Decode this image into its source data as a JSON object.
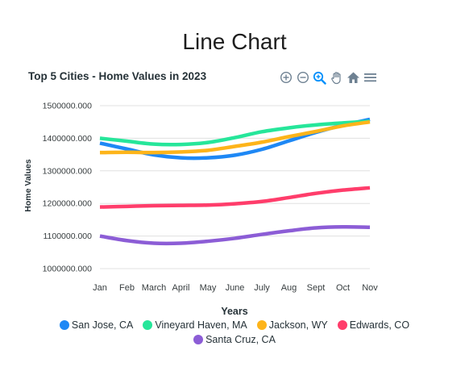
{
  "page": {
    "title": "Line Chart"
  },
  "toolbar": {
    "icons": [
      "zoom-in-icon",
      "zoom-out-icon",
      "selection-zoom-icon",
      "pan-hand-icon",
      "reset-home-icon",
      "menu-icon"
    ]
  },
  "chart_data": {
    "type": "line",
    "title": "Top 5 Cities - Home Values in 2023",
    "xlabel": "Years",
    "ylabel": "Home Values",
    "categories": [
      "Jan",
      "Feb",
      "March",
      "April",
      "May",
      "June",
      "July",
      "Aug",
      "Sept",
      "Oct",
      "Nov"
    ],
    "ylim": [
      1000000,
      1500000
    ],
    "yticks": [
      "1500000.000",
      "1400000.000",
      "1300000.000",
      "1200000.000",
      "1100000.000",
      "1000000.000"
    ],
    "ytick_values": [
      1500000,
      1400000,
      1300000,
      1200000,
      1100000,
      1000000
    ],
    "grid": true,
    "legend_position": "bottom",
    "series": [
      {
        "name": "San Jose, CA",
        "color": "#1e88f5",
        "values": [
          1385000,
          1367000,
          1349000,
          1340000,
          1340000,
          1348000,
          1366000,
          1392000,
          1418000,
          1440000,
          1458000
        ]
      },
      {
        "name": "Vineyard Haven, MA",
        "color": "#26e69a",
        "values": [
          1400000,
          1391000,
          1382000,
          1381000,
          1387000,
          1402000,
          1420000,
          1432000,
          1441000,
          1447000,
          1452000
        ]
      },
      {
        "name": "Jackson, WY",
        "color": "#fdb41a",
        "values": [
          1356000,
          1357000,
          1356000,
          1358000,
          1363000,
          1375000,
          1388000,
          1405000,
          1421000,
          1438000,
          1450000
        ]
      },
      {
        "name": "Edwards, CO",
        "color": "#ff3d6b",
        "values": [
          1189000,
          1191000,
          1193000,
          1194000,
          1195000,
          1199000,
          1206000,
          1218000,
          1231000,
          1241000,
          1248000
        ]
      },
      {
        "name": "Santa Cruz, CA",
        "color": "#8c5dd6",
        "values": [
          1100000,
          1086000,
          1078000,
          1078000,
          1084000,
          1093000,
          1105000,
          1116000,
          1125000,
          1128000,
          1127000
        ]
      }
    ]
  }
}
